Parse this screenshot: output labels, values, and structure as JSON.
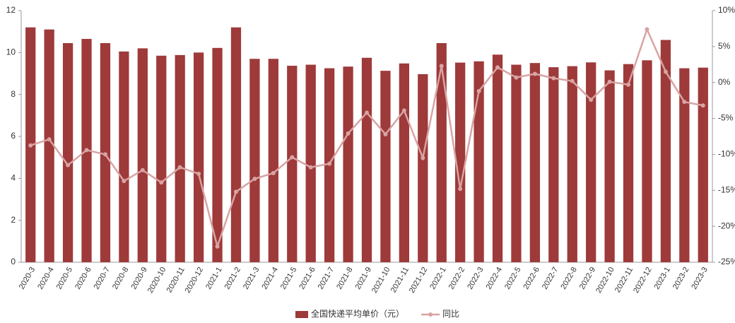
{
  "chart_data": {
    "type": "bar-line",
    "categories": [
      "2020-3",
      "2020-4",
      "2020-5",
      "2020-6",
      "2020-7",
      "2020-8",
      "2020-9",
      "2020-10",
      "2020-11",
      "2020-12",
      "2021-1",
      "2021-2",
      "2021-3",
      "2021-4",
      "2021-5",
      "2021-6",
      "2021-7",
      "2021-8",
      "2021-9",
      "2021-10",
      "2021-11",
      "2021-12",
      "2022-1",
      "2022-2",
      "2022-3",
      "2022-4",
      "2022-5",
      "2022-6",
      "2022-7",
      "2022-8",
      "2022-9",
      "2022-10",
      "2022-11",
      "2022-12",
      "2023-1",
      "2023-2",
      "2023-3"
    ],
    "series": [
      {
        "name": "全国快递平均单价（元）",
        "type": "bar",
        "color": "#9e3a3a",
        "values": [
          11.2,
          11.1,
          10.45,
          10.65,
          10.45,
          10.05,
          10.2,
          9.85,
          9.88,
          10.0,
          10.22,
          11.2,
          9.7,
          9.7,
          9.37,
          9.42,
          9.25,
          9.33,
          9.75,
          9.13,
          9.48,
          8.97,
          10.45,
          9.52,
          9.58,
          9.9,
          9.42,
          9.5,
          9.3,
          9.35,
          9.53,
          9.15,
          9.45,
          9.63,
          10.6,
          9.25,
          9.28
        ]
      },
      {
        "name": "同比",
        "type": "line",
        "axis": "y2",
        "color": "#d9a3a3",
        "values": [
          -8.75,
          -7.9,
          -11.5,
          -9.4,
          -10.0,
          -13.7,
          -12.2,
          -13.9,
          -11.8,
          -12.7,
          -22.8,
          -15.2,
          -13.4,
          -12.6,
          -10.4,
          -11.8,
          -11.3,
          -7.1,
          -4.2,
          -7.2,
          -3.9,
          -10.5,
          2.3,
          -14.8,
          -1.2,
          2.1,
          0.7,
          1.2,
          0.6,
          0.2,
          -2.4,
          0.1,
          -0.3,
          7.4,
          1.5,
          -2.7,
          -3.2
        ]
      }
    ],
    "ylim": [
      0,
      12
    ],
    "yticks": [
      0,
      2,
      4,
      6,
      8,
      10,
      12
    ],
    "y2lim": [
      -25,
      10
    ],
    "y2ticks": [
      {
        "value": -25,
        "label": "-25%"
      },
      {
        "value": -20,
        "label": "-20%"
      },
      {
        "value": -15,
        "label": "-15%"
      },
      {
        "value": -10,
        "label": "-10%"
      },
      {
        "value": -5,
        "label": "-5%"
      },
      {
        "value": 0,
        "label": "0%"
      },
      {
        "value": 5,
        "label": "5%"
      },
      {
        "value": 10,
        "label": "10%"
      }
    ],
    "legend": "bottom"
  }
}
